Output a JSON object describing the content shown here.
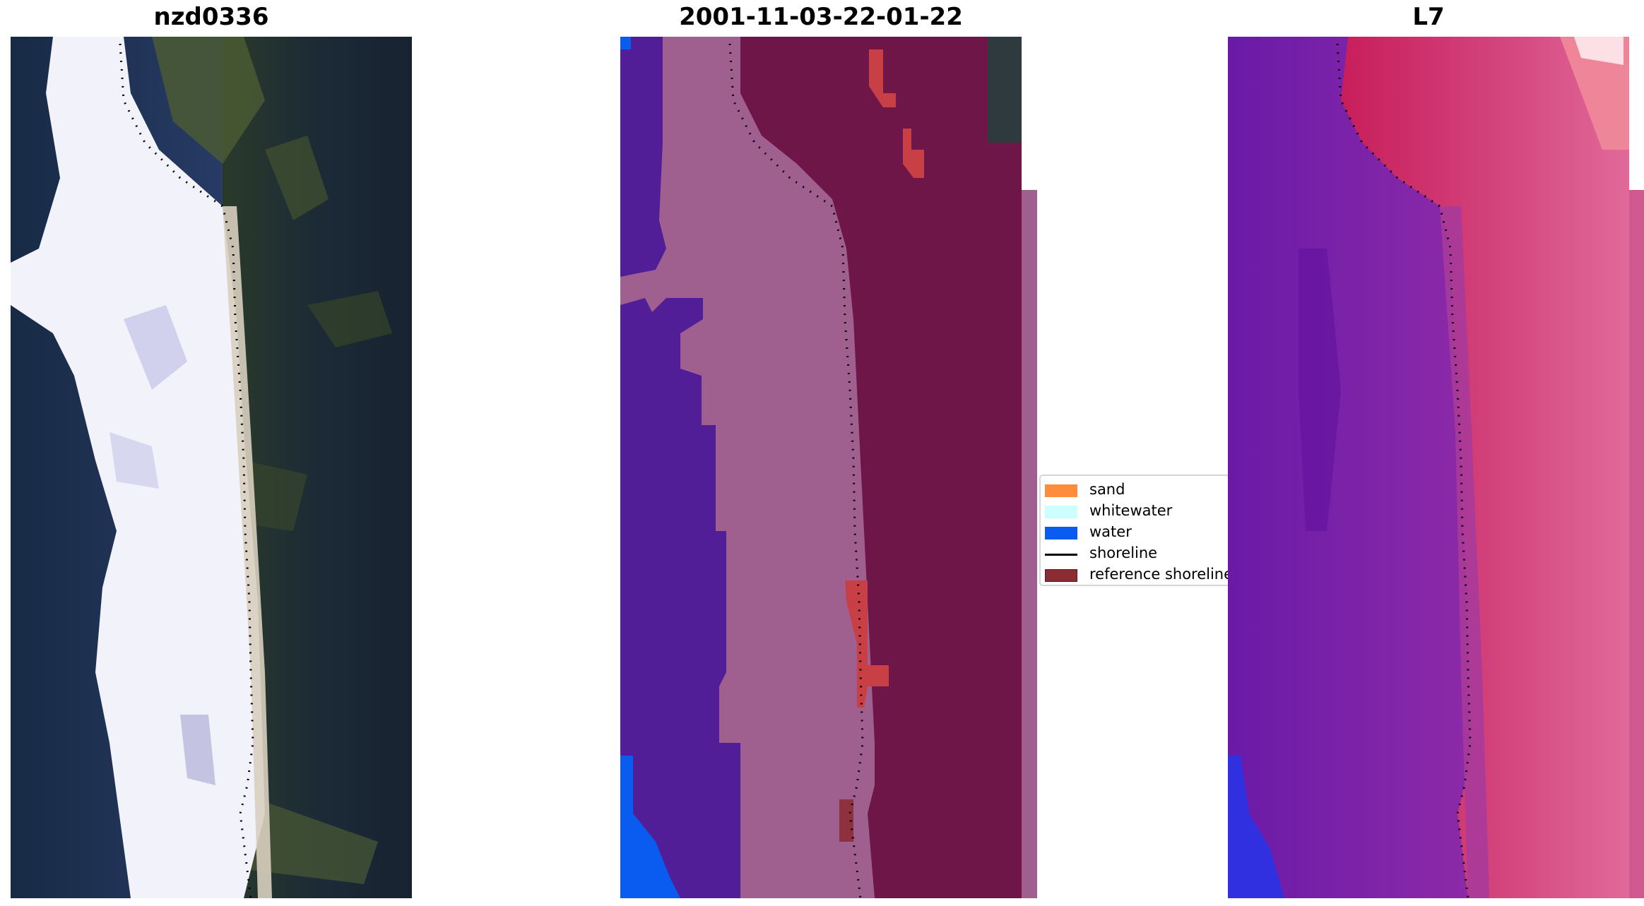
{
  "titles": {
    "left": "nzd0336",
    "center": "2001-11-03-22-01-22",
    "right": "L7"
  },
  "legend": {
    "items": [
      {
        "label": "sand",
        "color": "#ff8c3a",
        "kind": "patch"
      },
      {
        "label": "whitewater",
        "color": "#ccffff",
        "kind": "patch"
      },
      {
        "label": "water",
        "color": "#0a5cf0",
        "kind": "patch"
      },
      {
        "label": "shoreline",
        "color": "#000000",
        "kind": "line"
      },
      {
        "label": "reference shoreline",
        "color": "#8b2c34",
        "kind": "patch"
      }
    ]
  },
  "colors": {
    "sand_overlay": "#a0608f",
    "land_dark": "#6e1648",
    "water_class": "#521e98",
    "water_blue": "#0a5cf0",
    "reference_red": "#c84046"
  }
}
